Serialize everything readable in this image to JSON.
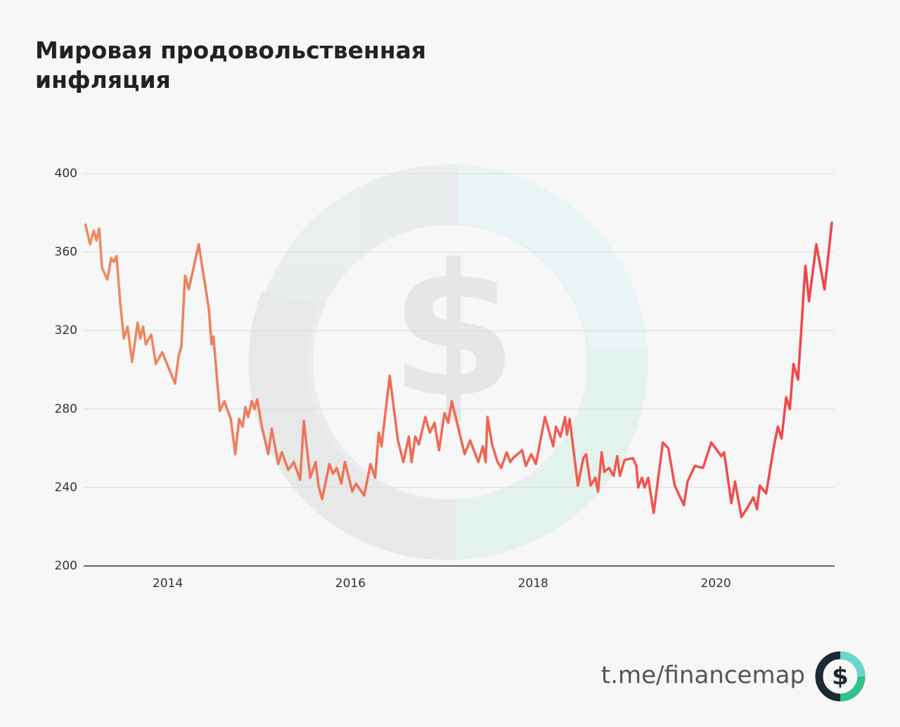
{
  "chart_data": {
    "type": "line",
    "title": "Мировая продовольственная инфляция",
    "footer": "t.me/financemap",
    "x": [
      2013.1,
      2013.15,
      2013.19,
      2013.22,
      2013.25,
      2013.28,
      2013.34,
      2013.38,
      2013.41,
      2013.44,
      2013.48,
      2013.52,
      2013.56,
      2013.61,
      2013.67,
      2013.7,
      2013.73,
      2013.76,
      2013.82,
      2013.87,
      2013.94,
      2014.08,
      2014.12,
      2014.15,
      2014.19,
      2014.23,
      2014.34,
      2014.45,
      2014.48,
      2014.5,
      2014.57,
      2014.62,
      2014.69,
      2014.74,
      2014.78,
      2014.82,
      2014.85,
      2014.88,
      2014.92,
      2014.95,
      2014.98,
      2015.03,
      2015.1,
      2015.14,
      2015.21,
      2015.25,
      2015.32,
      2015.38,
      2015.45,
      2015.49,
      2015.56,
      2015.62,
      2015.65,
      2015.69,
      2015.77,
      2015.81,
      2015.85,
      2015.9,
      2015.94,
      2016.02,
      2016.06,
      2016.15,
      2016.22,
      2016.27,
      2016.31,
      2016.34,
      2016.43,
      2016.52,
      2016.58,
      2016.64,
      2016.67,
      2016.71,
      2016.75,
      2016.82,
      2016.87,
      2016.92,
      2016.97,
      2017.03,
      2017.07,
      2017.11,
      2017.25,
      2017.31,
      2017.4,
      2017.45,
      2017.48,
      2017.5,
      2017.55,
      2017.61,
      2017.65,
      2017.71,
      2017.75,
      2017.78,
      2017.88,
      2017.92,
      2017.98,
      2018.03,
      2018.13,
      2018.22,
      2018.25,
      2018.3,
      2018.35,
      2018.37,
      2018.4,
      2018.49,
      2018.55,
      2018.58,
      2018.63,
      2018.68,
      2018.71,
      2018.75,
      2018.78,
      2018.83,
      2018.88,
      2018.92,
      2018.95,
      2019.0,
      2019.09,
      2019.13,
      2019.15,
      2019.19,
      2019.22,
      2019.26,
      2019.32,
      2019.42,
      2019.48,
      2019.55,
      2019.65,
      2019.69,
      2019.77,
      2019.86,
      2019.95,
      2020.06,
      2020.09,
      2020.17,
      2020.21,
      2020.28,
      2020.35,
      2020.41,
      2020.45,
      2020.48,
      2020.55,
      2020.64,
      2020.68,
      2020.72,
      2020.77,
      2020.81,
      2020.85,
      2020.9,
      2020.98,
      2021.02,
      2021.1,
      2021.19,
      2021.27
    ],
    "series": [
      {
        "colors": [
          "#ee8b5e",
          "#f2424a"
        ],
        "values": [
          374,
          364,
          371,
          366,
          372,
          352,
          346,
          357,
          355,
          358,
          334,
          316,
          322,
          304,
          324,
          316,
          322,
          313,
          318,
          303,
          309,
          293,
          307,
          312,
          348,
          341,
          364,
          331,
          313,
          317,
          279,
          284,
          275,
          257,
          275,
          271,
          281,
          276,
          284,
          280,
          285,
          271,
          257,
          270,
          252,
          258,
          249,
          253,
          244,
          274,
          245,
          253,
          241,
          234,
          252,
          247,
          250,
          242,
          253,
          238,
          242,
          236,
          252,
          245,
          268,
          261,
          297,
          264,
          253,
          266,
          253,
          266,
          262,
          276,
          268,
          273,
          259,
          278,
          273,
          284,
          257,
          264,
          253,
          261,
          253,
          276,
          262,
          253,
          250,
          258,
          253,
          255,
          259,
          251,
          257,
          252,
          276,
          261,
          271,
          266,
          276,
          267,
          275,
          241,
          255,
          257,
          241,
          245,
          238,
          258,
          248,
          250,
          246,
          256,
          246,
          254,
          255,
          251,
          240,
          245,
          240,
          245,
          227,
          263,
          260,
          241,
          231,
          243,
          251,
          250,
          263,
          256,
          258,
          232,
          243,
          225,
          230,
          235,
          229,
          241,
          237,
          262,
          271,
          265,
          286,
          280,
          303,
          295,
          353,
          335,
          364,
          341,
          375
        ]
      }
    ],
    "xlim": [
      2013.08,
      2021.3
    ],
    "xticks": [
      2014,
      2016,
      2018,
      2020
    ],
    "ylim": [
      200,
      400
    ],
    "yticks": [
      200,
      240,
      280,
      320,
      360,
      400
    ],
    "grid": true
  }
}
